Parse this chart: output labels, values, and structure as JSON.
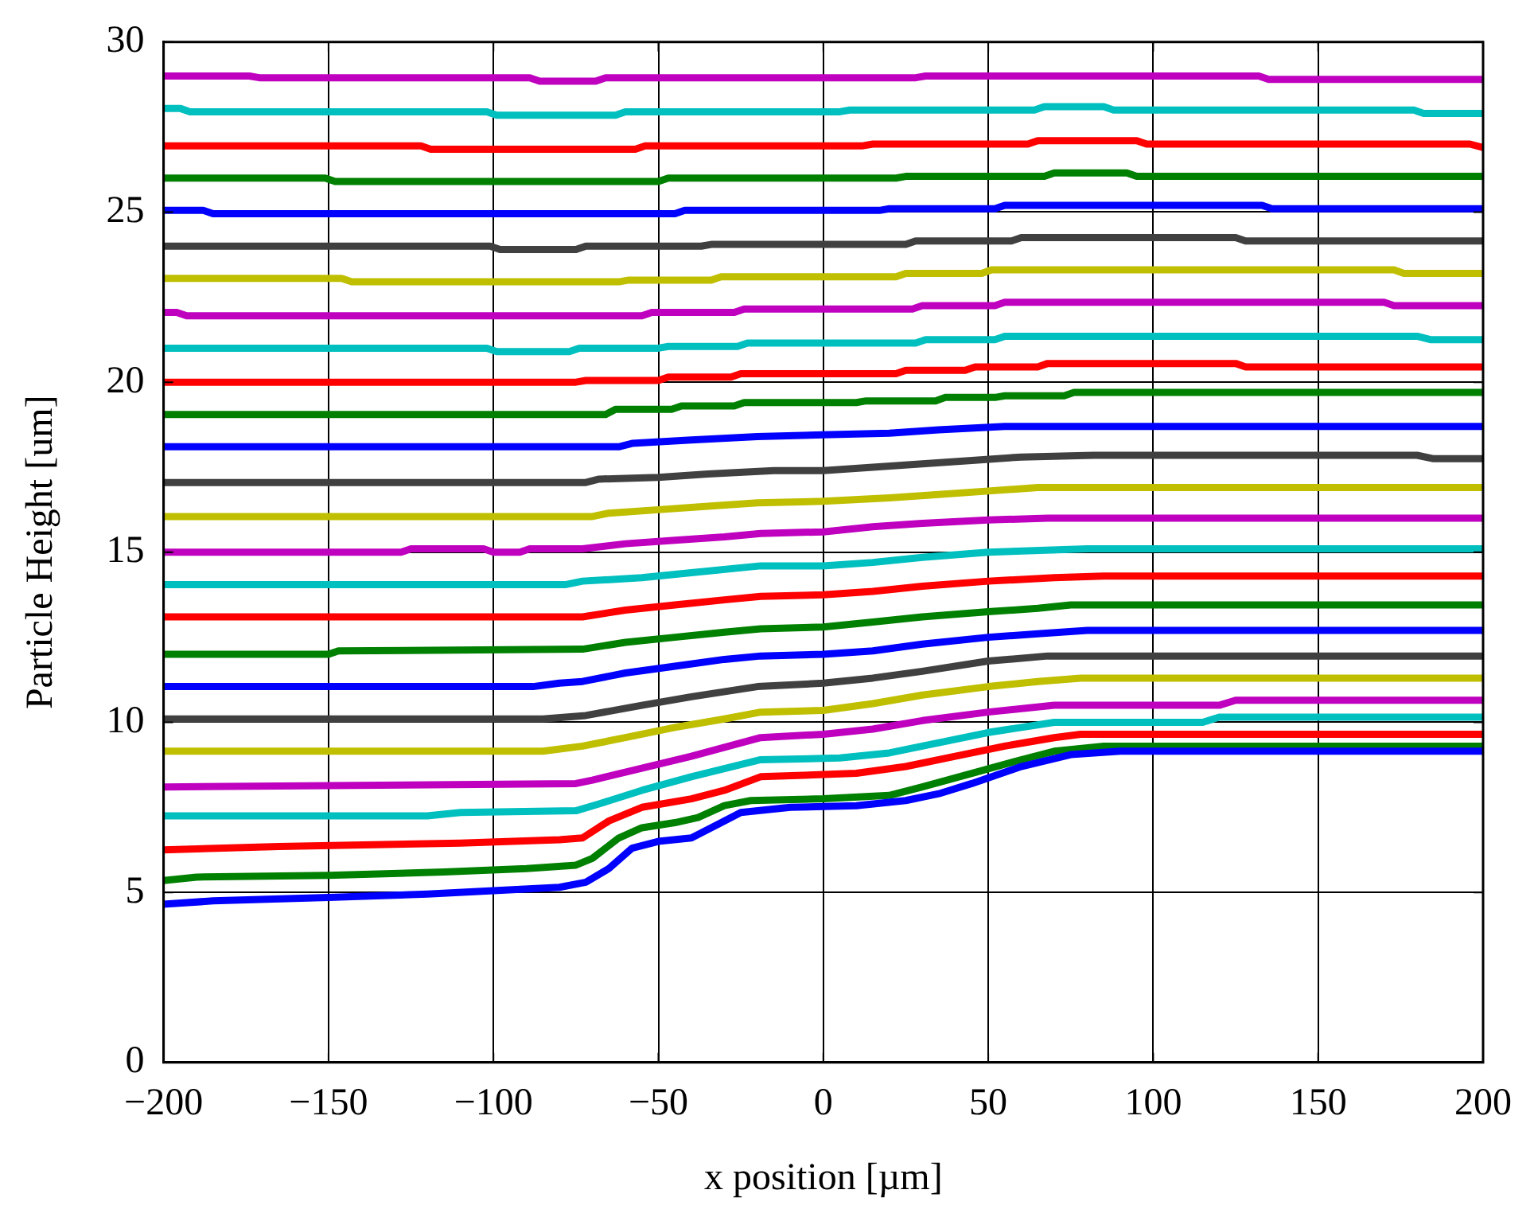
{
  "chart_data": {
    "type": "line",
    "xlabel": "x position [µm]",
    "ylabel": "Particle Height [um]",
    "xlim": [
      -200,
      200
    ],
    "ylim": [
      0,
      30
    ],
    "xticks": [
      {
        "value": -200,
        "label": "−200"
      },
      {
        "value": -150,
        "label": "−150"
      },
      {
        "value": -100,
        "label": "−100"
      },
      {
        "value": -50,
        "label": "−50"
      },
      0,
      50,
      100,
      150,
      200
    ],
    "yticks": [
      0,
      5,
      10,
      15,
      20,
      25,
      30
    ],
    "grid": true,
    "legend": false,
    "series": [
      {
        "color": "#0000ff",
        "x": [
          -200,
          -185,
          -150,
          -120,
          -100,
          -80,
          -72,
          -65,
          -58,
          -50,
          -40,
          -32,
          -25,
          -10,
          10,
          25,
          35,
          45,
          60,
          75,
          90,
          200
        ],
        "values": [
          4.65,
          4.75,
          4.85,
          4.95,
          5.05,
          5.15,
          5.3,
          5.7,
          6.3,
          6.5,
          6.6,
          7.0,
          7.35,
          7.5,
          7.55,
          7.7,
          7.9,
          8.2,
          8.7,
          9.05,
          9.15,
          9.15
        ]
      },
      {
        "color": "#008000",
        "x": [
          -200,
          -190,
          -150,
          -115,
          -90,
          -75,
          -70,
          -62,
          -55,
          -45,
          -38,
          -30,
          -22,
          0,
          20,
          30,
          45,
          60,
          70,
          85,
          200
        ],
        "values": [
          5.35,
          5.45,
          5.5,
          5.6,
          5.7,
          5.8,
          6.0,
          6.6,
          6.9,
          7.05,
          7.2,
          7.55,
          7.7,
          7.75,
          7.85,
          8.1,
          8.5,
          8.9,
          9.15,
          9.3,
          9.3
        ]
      },
      {
        "color": "#ff0000",
        "x": [
          -200,
          -165,
          -110,
          -80,
          -73,
          -65,
          -55,
          -40,
          -30,
          -19,
          10,
          25,
          40,
          55,
          70,
          78,
          200
        ],
        "values": [
          6.25,
          6.35,
          6.45,
          6.55,
          6.6,
          7.1,
          7.5,
          7.75,
          8.0,
          8.4,
          8.5,
          8.7,
          9.0,
          9.3,
          9.55,
          9.65,
          9.65
        ]
      },
      {
        "color": "#00bfbf",
        "x": [
          -200,
          -120,
          -110,
          -75,
          -68,
          -55,
          -40,
          -19,
          5,
          20,
          35,
          50,
          70,
          115,
          120,
          200
        ],
        "values": [
          7.25,
          7.25,
          7.35,
          7.4,
          7.6,
          8.0,
          8.4,
          8.9,
          8.95,
          9.1,
          9.4,
          9.7,
          10.0,
          10.0,
          10.15,
          10.15
        ]
      },
      {
        "color": "#bf00bf",
        "x": [
          -200,
          -75,
          -70,
          -55,
          -40,
          -19,
          0,
          15,
          30,
          50,
          70,
          120,
          125,
          200
        ],
        "values": [
          8.1,
          8.2,
          8.3,
          8.65,
          9.0,
          9.55,
          9.65,
          9.8,
          10.05,
          10.3,
          10.5,
          10.5,
          10.65,
          10.65
        ]
      },
      {
        "color": "#bfbf00",
        "x": [
          -200,
          -85,
          -73,
          -60,
          -45,
          -30,
          -19,
          0,
          15,
          30,
          50,
          65,
          78,
          200
        ],
        "values": [
          9.15,
          9.15,
          9.3,
          9.55,
          9.85,
          10.1,
          10.3,
          10.35,
          10.55,
          10.8,
          11.05,
          11.2,
          11.3,
          11.3
        ]
      },
      {
        "color": "#404040",
        "x": [
          -200,
          -85,
          -72,
          -55,
          -40,
          -20,
          0,
          15,
          30,
          50,
          68,
          200
        ],
        "values": [
          10.1,
          10.1,
          10.2,
          10.5,
          10.75,
          11.05,
          11.15,
          11.3,
          11.5,
          11.8,
          11.95,
          11.95
        ]
      },
      {
        "color": "#0000ff",
        "x": [
          -200,
          -88,
          -80,
          -73,
          -60,
          -45,
          -30,
          -19,
          0,
          15,
          30,
          50,
          65,
          80,
          200
        ],
        "values": [
          11.05,
          11.05,
          11.15,
          11.2,
          11.45,
          11.65,
          11.85,
          11.95,
          12.0,
          12.1,
          12.3,
          12.5,
          12.6,
          12.7,
          12.7
        ]
      },
      {
        "color": "#008000",
        "x": [
          -200,
          -150,
          -147,
          -73,
          -60,
          -45,
          -30,
          -19,
          0,
          15,
          30,
          50,
          65,
          75,
          200
        ],
        "values": [
          12.0,
          12.0,
          12.1,
          12.15,
          12.35,
          12.5,
          12.65,
          12.75,
          12.8,
          12.95,
          13.1,
          13.25,
          13.35,
          13.45,
          13.45
        ]
      },
      {
        "color": "#ff0000",
        "x": [
          -200,
          -73,
          -60,
          -45,
          -30,
          -19,
          0,
          15,
          30,
          50,
          70,
          85,
          200
        ],
        "values": [
          13.1,
          13.1,
          13.3,
          13.45,
          13.6,
          13.7,
          13.75,
          13.85,
          14.0,
          14.15,
          14.25,
          14.3,
          14.3
        ]
      },
      {
        "color": "#00bfbf",
        "x": [
          -200,
          -78,
          -73,
          -55,
          -40,
          -19,
          0,
          15,
          30,
          50,
          80,
          200
        ],
        "values": [
          14.05,
          14.05,
          14.15,
          14.25,
          14.4,
          14.6,
          14.6,
          14.7,
          14.85,
          15.0,
          15.1,
          15.1
        ]
      },
      {
        "color": "#bf00bf",
        "x": [
          -200,
          -128,
          -125,
          -103,
          -100,
          -92,
          -89,
          -73,
          -60,
          -45,
          -30,
          -19,
          0,
          15,
          30,
          50,
          68,
          200
        ],
        "values": [
          15.0,
          15.0,
          15.1,
          15.1,
          15.0,
          15.0,
          15.1,
          15.1,
          15.25,
          15.35,
          15.45,
          15.55,
          15.6,
          15.75,
          15.85,
          15.95,
          16.0,
          16.0
        ]
      },
      {
        "color": "#bfbf00",
        "x": [
          -200,
          -70,
          -65,
          -50,
          -35,
          -20,
          0,
          20,
          35,
          50,
          65,
          200
        ],
        "values": [
          16.05,
          16.05,
          16.15,
          16.25,
          16.35,
          16.45,
          16.5,
          16.6,
          16.7,
          16.8,
          16.9,
          16.9
        ]
      },
      {
        "color": "#404040",
        "x": [
          -200,
          -72,
          -68,
          -50,
          -35,
          -15,
          0,
          15,
          30,
          45,
          60,
          82,
          180,
          185,
          200
        ],
        "values": [
          17.05,
          17.05,
          17.15,
          17.2,
          17.3,
          17.4,
          17.4,
          17.5,
          17.6,
          17.7,
          17.8,
          17.85,
          17.85,
          17.75,
          17.75
        ]
      },
      {
        "color": "#0000ff",
        "x": [
          -200,
          -62,
          -58,
          -40,
          -20,
          0,
          20,
          35,
          55,
          200
        ],
        "values": [
          18.1,
          18.1,
          18.2,
          18.3,
          18.4,
          18.45,
          18.5,
          18.6,
          18.7,
          18.7
        ]
      },
      {
        "color": "#008000",
        "x": [
          -200,
          -66,
          -63,
          -46,
          -43,
          -27,
          -24,
          10,
          13,
          34,
          37,
          52,
          55,
          73,
          76,
          200
        ],
        "values": [
          19.05,
          19.05,
          19.2,
          19.2,
          19.3,
          19.3,
          19.4,
          19.4,
          19.45,
          19.45,
          19.55,
          19.55,
          19.6,
          19.6,
          19.7,
          19.7
        ]
      },
      {
        "color": "#ff0000",
        "x": [
          -200,
          -75,
          -72,
          -50,
          -47,
          -28,
          -25,
          22,
          25,
          43,
          46,
          65,
          68,
          125,
          128,
          200
        ],
        "values": [
          20.0,
          20.0,
          20.05,
          20.05,
          20.15,
          20.15,
          20.25,
          20.25,
          20.35,
          20.35,
          20.45,
          20.45,
          20.55,
          20.55,
          20.45,
          20.45
        ]
      },
      {
        "color": "#00bfbf",
        "x": [
          -200,
          -102,
          -99,
          -77,
          -74,
          -50,
          -47,
          -26,
          -23,
          28,
          31,
          52,
          55,
          180,
          184,
          200
        ],
        "values": [
          21.0,
          21.0,
          20.9,
          20.9,
          21.0,
          21.0,
          21.05,
          21.05,
          21.15,
          21.15,
          21.25,
          21.25,
          21.35,
          21.35,
          21.25,
          21.25
        ]
      },
      {
        "color": "#bf00bf",
        "x": [
          -200,
          -196,
          -193,
          -55,
          -52,
          -27,
          -24,
          27,
          30,
          52,
          55,
          170,
          173,
          200
        ],
        "values": [
          22.05,
          22.05,
          21.95,
          21.95,
          22.05,
          22.05,
          22.15,
          22.15,
          22.25,
          22.25,
          22.35,
          22.35,
          22.25,
          22.25
        ]
      },
      {
        "color": "#bfbf00",
        "x": [
          -200,
          -146,
          -143,
          -62,
          -59,
          -34,
          -31,
          22,
          25,
          48,
          51,
          173,
          176,
          200
        ],
        "values": [
          23.05,
          23.05,
          22.95,
          22.95,
          23.0,
          23.0,
          23.1,
          23.1,
          23.2,
          23.2,
          23.3,
          23.3,
          23.2,
          23.2
        ]
      },
      {
        "color": "#404040",
        "x": [
          -200,
          -101,
          -98,
          -75,
          -72,
          -37,
          -34,
          25,
          28,
          57,
          60,
          125,
          128,
          200
        ],
        "values": [
          24.0,
          24.0,
          23.9,
          23.9,
          24.0,
          24.0,
          24.05,
          24.05,
          24.15,
          24.15,
          24.25,
          24.25,
          24.15,
          24.15
        ]
      },
      {
        "color": "#0000ff",
        "x": [
          -200,
          -188,
          -185,
          -45,
          -42,
          17,
          20,
          52,
          55,
          133,
          136,
          200
        ],
        "values": [
          25.05,
          25.05,
          24.95,
          24.95,
          25.05,
          25.05,
          25.1,
          25.1,
          25.2,
          25.2,
          25.1,
          25.1
        ]
      },
      {
        "color": "#008000",
        "x": [
          -200,
          -151,
          -148,
          -50,
          -47,
          22,
          25,
          67,
          70,
          92,
          95,
          200
        ],
        "values": [
          26.0,
          26.0,
          25.9,
          25.9,
          26.0,
          26.0,
          26.05,
          26.05,
          26.15,
          26.15,
          26.05,
          26.05
        ]
      },
      {
        "color": "#ff0000",
        "x": [
          -200,
          -122,
          -119,
          -57,
          -54,
          12,
          15,
          62,
          65,
          95,
          98,
          196,
          200
        ],
        "values": [
          26.95,
          26.95,
          26.85,
          26.85,
          26.95,
          26.95,
          27.0,
          27.0,
          27.1,
          27.1,
          27.0,
          27.0,
          26.9
        ]
      },
      {
        "color": "#00bfbf",
        "x": [
          -200,
          -195,
          -192,
          -102,
          -99,
          -63,
          -60,
          5,
          8,
          64,
          67,
          85,
          88,
          179,
          182,
          200
        ],
        "values": [
          28.05,
          28.05,
          27.95,
          27.95,
          27.85,
          27.85,
          27.95,
          27.95,
          28.0,
          28.0,
          28.1,
          28.1,
          28.0,
          28.0,
          27.9,
          27.9
        ]
      },
      {
        "color": "#bf00bf",
        "x": [
          -200,
          -174,
          -171,
          -89,
          -86,
          -69,
          -66,
          28,
          31,
          132,
          135,
          200
        ],
        "values": [
          29.0,
          29.0,
          28.95,
          28.95,
          28.85,
          28.85,
          28.95,
          28.95,
          29.0,
          29.0,
          28.9,
          28.9
        ]
      }
    ]
  }
}
